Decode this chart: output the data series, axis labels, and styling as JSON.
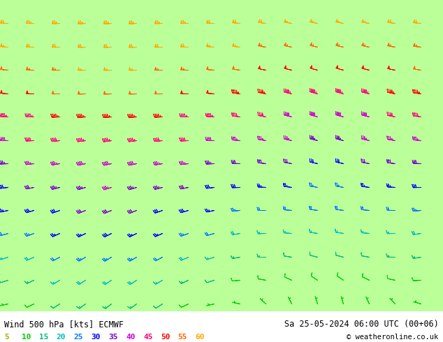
{
  "title_left": "Wind 500 hPa [kts] ECMWF",
  "title_right": "Sa 25-05-2024 06:00 UTC (00+06)",
  "copyright": "© weatheronline.co.uk",
  "legend_values": [
    5,
    10,
    15,
    20,
    25,
    30,
    35,
    40,
    45,
    50,
    55,
    60
  ],
  "legend_colors": [
    "#aaaa00",
    "#00cc00",
    "#00bb77",
    "#00bbbb",
    "#0077ff",
    "#0000ff",
    "#7700cc",
    "#cc00cc",
    "#ff0077",
    "#ff0000",
    "#ff6600",
    "#ffaa00"
  ],
  "bg_color": "#ffffff",
  "bottom_bar_color": "#dddddd",
  "speed_colors": {
    "5": "#aaaa00",
    "10": "#00cc00",
    "15": "#00bb77",
    "20": "#00bbbb",
    "25": "#0077ff",
    "30": "#0000ff",
    "35": "#7700cc",
    "40": "#cc00cc",
    "45": "#ff0077",
    "50": "#ff0000",
    "55": "#ff6600",
    "60": "#ffaa00"
  },
  "map_extent": [
    100,
    160,
    20,
    60
  ],
  "land_color": "#bbff99",
  "sea_color": "#e8e8e8",
  "coastline_color": "#888888",
  "barb_color_thresholds": [
    5,
    10,
    15,
    20,
    25,
    30,
    35,
    40,
    45,
    50,
    55,
    60
  ],
  "figsize": [
    6.34,
    4.9
  ],
  "dpi": 100
}
